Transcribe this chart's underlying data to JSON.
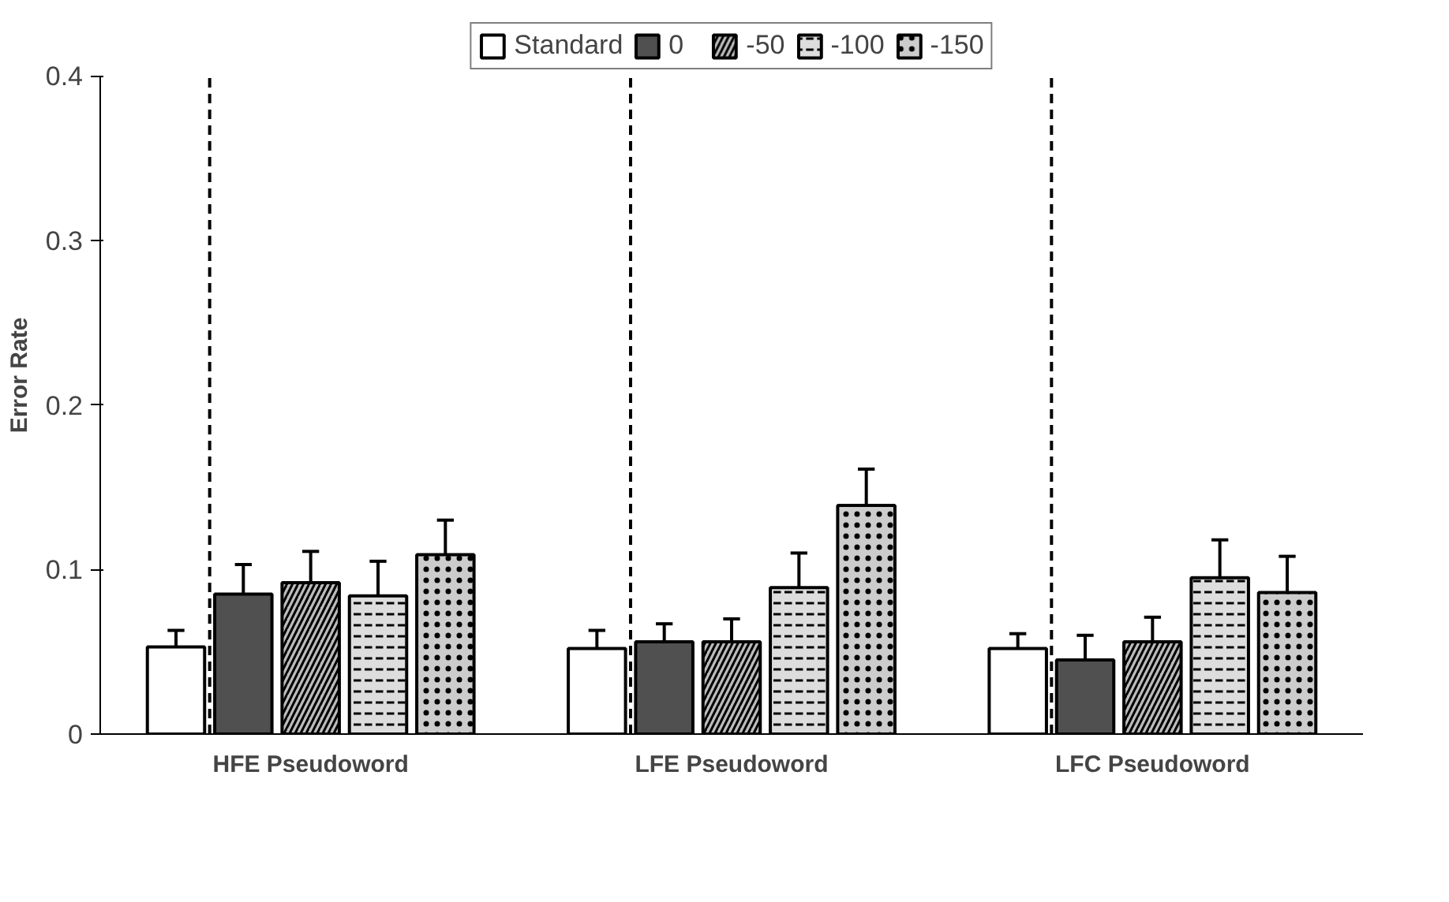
{
  "chart_data": {
    "type": "bar",
    "ylabel": "Error Rate",
    "categories": [
      "HFE Pseudoword",
      "LFE Pseudoword",
      "LFC Pseudoword"
    ],
    "series": [
      {
        "name": "Standard",
        "color": "#ffffff",
        "values": [
          0.053,
          0.052,
          0.052
        ],
        "errors": [
          [
            0.053,
            0.063
          ],
          [
            0.052,
            0.063
          ],
          [
            0.052,
            0.061
          ]
        ]
      },
      {
        "name": "0",
        "color": "#505050",
        "values": [
          0.085,
          0.056,
          0.045
        ],
        "errors": [
          [
            0.085,
            0.103
          ],
          [
            0.056,
            0.067
          ],
          [
            0.045,
            0.06
          ]
        ]
      },
      {
        "name": "-50",
        "color": "#bbbbbb",
        "values": [
          0.092,
          0.056,
          0.056
        ],
        "errors": [
          [
            0.092,
            0.111
          ],
          [
            0.056,
            0.07
          ],
          [
            0.056,
            0.071
          ]
        ]
      },
      {
        "name": "-100",
        "color": "#dddddd",
        "values": [
          0.084,
          0.089,
          0.095
        ],
        "errors": [
          [
            0.084,
            0.105
          ],
          [
            0.089,
            0.11
          ],
          [
            0.095,
            0.118
          ]
        ]
      },
      {
        "name": "-150",
        "color": "#cccccc",
        "values": [
          0.109,
          0.139,
          0.086
        ],
        "errors": [
          [
            0.109,
            0.13
          ],
          [
            0.139,
            0.161
          ],
          [
            0.086,
            0.108
          ]
        ]
      }
    ],
    "ylim": [
      0,
      0.4
    ],
    "yticks": [
      0,
      0.1,
      0.2,
      0.3,
      0.4
    ],
    "ref_lines": [
      {
        "axis": "x",
        "value": "HFE Pseudoword",
        "line_style": "dashed",
        "color": "#000000"
      },
      {
        "axis": "x",
        "value": "LFE Pseudoword",
        "line_style": "dashed",
        "color": "#000000"
      },
      {
        "axis": "x",
        "value": "LFC Pseudoword",
        "line_style": "dashed",
        "color": "#000000"
      }
    ],
    "legend": "top",
    "grid": false
  }
}
